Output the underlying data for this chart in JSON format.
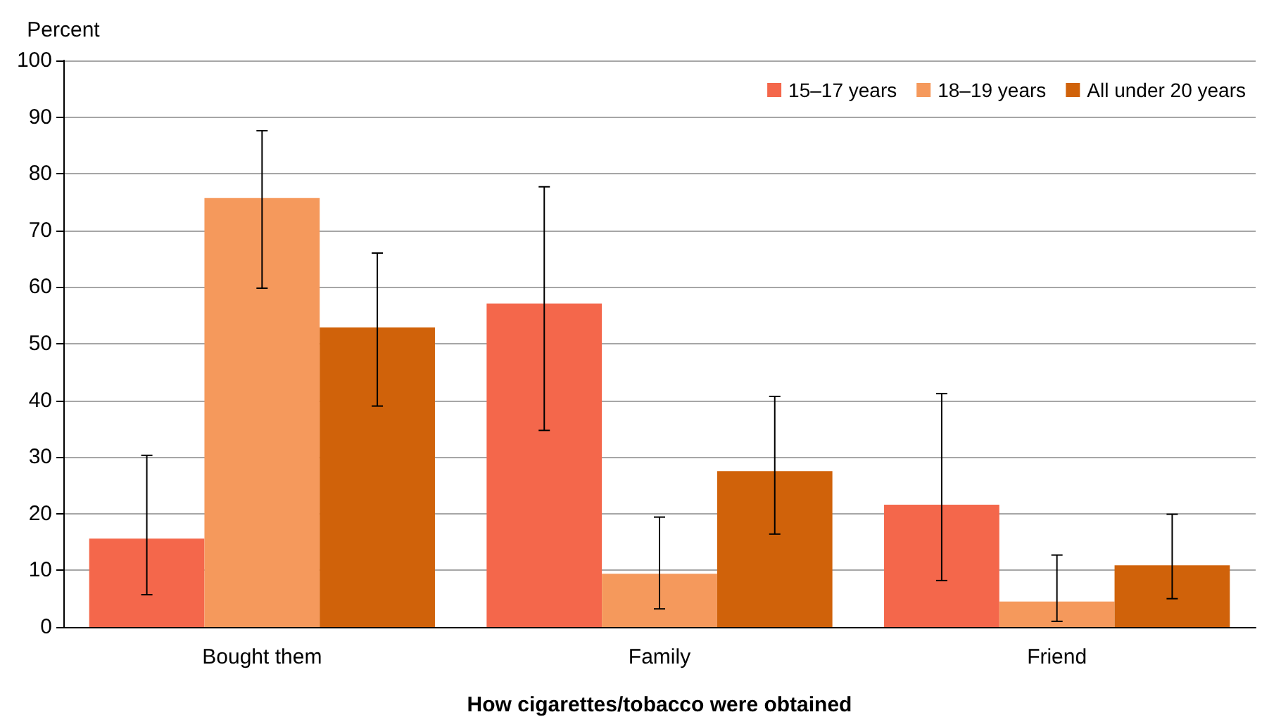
{
  "chart_data": {
    "type": "bar",
    "xlabel": "How cigarettes/tobacco were obtained",
    "ylabel": "Percent",
    "categories": [
      "Bought them",
      "Family",
      "Friend"
    ],
    "series": [
      {
        "name": "15–17 years",
        "color": "#f4674b",
        "values": [
          15.6,
          57.1,
          21.6
        ],
        "errors": [
          [
            5.7,
            30.3
          ],
          [
            34.7,
            77.7
          ],
          [
            8.2,
            41.2
          ]
        ]
      },
      {
        "name": "18–19 years",
        "color": "#f5995c",
        "values": [
          75.7,
          9.4,
          4.5
        ],
        "errors": [
          [
            59.8,
            87.6
          ],
          [
            3.2,
            19.4
          ],
          [
            1,
            12.7
          ]
        ]
      },
      {
        "name": "All under 20 years",
        "color": "#d0620a",
        "values": [
          52.9,
          27.5,
          10.9
        ],
        "errors": [
          [
            39,
            66
          ],
          [
            16.4,
            40.7
          ],
          [
            5,
            19.9
          ]
        ]
      }
    ],
    "ylim": [
      0,
      100
    ],
    "yticks": [
      0,
      10,
      20,
      30,
      40,
      50,
      60,
      70,
      80,
      90,
      100
    ],
    "grid": "y",
    "legend": "top right"
  }
}
